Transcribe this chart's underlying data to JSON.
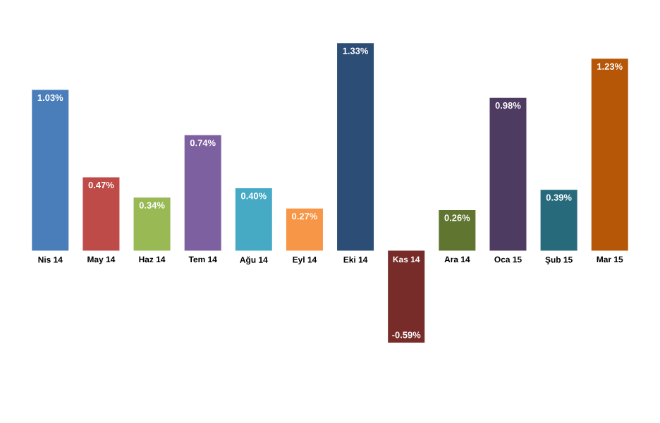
{
  "chart_data": {
    "type": "bar",
    "categories": [
      "Nis 14",
      "May 14",
      "Haz 14",
      "Tem 14",
      "Ağu 14",
      "Eyl 14",
      "Eki 14",
      "Kas 14",
      "Ara 14",
      "Oca 15",
      "Şub 15",
      "Mar 15"
    ],
    "values": [
      1.03,
      0.47,
      0.34,
      0.74,
      0.4,
      0.27,
      1.33,
      -0.59,
      0.26,
      0.98,
      0.39,
      1.23
    ],
    "value_labels": [
      "1.03%",
      "0.47%",
      "0.34%",
      "0.74%",
      "0.40%",
      "0.27%",
      "1.33%",
      "-0.59%",
      "0.26%",
      "0.98%",
      "0.39%",
      "1.23%"
    ],
    "colors": [
      "#4a7ebb",
      "#be4b48",
      "#98b954",
      "#7d60a0",
      "#46aac5",
      "#f79646",
      "#2c4d75",
      "#772c2a",
      "#5f7530",
      "#4d3b62",
      "#276a7c",
      "#b65708"
    ]
  }
}
